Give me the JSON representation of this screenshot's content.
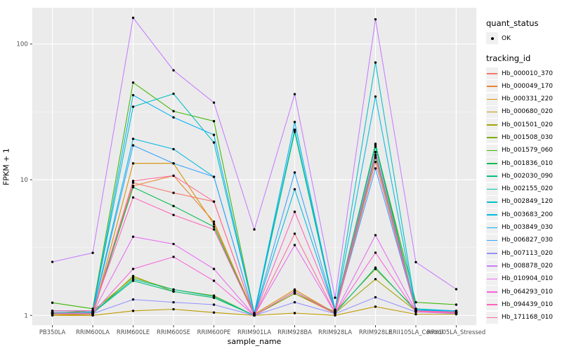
{
  "chart_data": {
    "type": "line",
    "title": "",
    "xlabel": "sample_name",
    "ylabel": "FPKM + 1",
    "y_scale": "log10",
    "ylim": [
      1,
      185
    ],
    "y_major_ticks": [
      "1",
      "10",
      "100"
    ],
    "y_major_values": [
      1,
      10,
      100
    ],
    "y_minor_gridline_values": [
      3.162,
      31.62
    ],
    "grid": true,
    "legend_position": "right",
    "panel_background": "#EBEBEB",
    "major_grid_color": "#FFFFFF",
    "minor_grid_color": "#F5F5F5",
    "tick_label_color": "#4D4D4D",
    "point_color": "#000000",
    "categories": [
      "PB350LA",
      "RRIM600LA",
      "RRIM600LE",
      "RRIM600SE",
      "RRIM600PE",
      "RRIM901LA",
      "RRIM928BA",
      "RRIM928LA",
      "RRIM928LE",
      "RRII105LA_Control",
      "RRII105LA_Stressed"
    ],
    "quant_status_legend": {
      "title": "quant_status",
      "items": [
        {
          "label": "OK",
          "marker": "point"
        }
      ]
    },
    "tracking_id_legend_title": "tracking_id",
    "series": [
      {
        "name": "Hb_000010_370",
        "color": "#F8766D",
        "values": [
          1.05,
          1.02,
          9.5,
          8.0,
          6.9,
          1.0,
          1.5,
          1.03,
          16.0,
          1.08,
          1.03
        ]
      },
      {
        "name": "Hb_000049_170",
        "color": "#EA8331",
        "values": [
          1.02,
          1.02,
          9.0,
          10.7,
          4.9,
          1.0,
          1.45,
          1.03,
          15.0,
          1.08,
          1.04
        ]
      },
      {
        "name": "Hb_000331_220",
        "color": "#D89000",
        "values": [
          1.02,
          1.0,
          13.2,
          13.2,
          4.7,
          1.02,
          1.55,
          1.04,
          14.5,
          1.1,
          1.06
        ]
      },
      {
        "name": "Hb_000680_020",
        "color": "#C09B00",
        "values": [
          1.0,
          1.0,
          1.08,
          1.11,
          1.05,
          1.0,
          1.04,
          1.0,
          1.16,
          1.02,
          1.02
        ]
      },
      {
        "name": "Hb_001501_020",
        "color": "#A3A500",
        "values": [
          1.03,
          1.03,
          1.95,
          1.5,
          1.35,
          1.0,
          1.5,
          1.04,
          1.85,
          1.08,
          1.05
        ]
      },
      {
        "name": "Hb_001508_030",
        "color": "#7CAE00",
        "values": [
          1.04,
          1.08,
          1.9,
          1.55,
          1.4,
          1.0,
          1.45,
          1.06,
          2.2,
          1.1,
          1.08
        ]
      },
      {
        "name": "Hb_001579_060",
        "color": "#39B600",
        "values": [
          1.24,
          1.12,
          52.0,
          32.0,
          27.0,
          1.04,
          23.0,
          1.1,
          18.0,
          1.25,
          1.2
        ]
      },
      {
        "name": "Hb_001836_010",
        "color": "#00BB4E",
        "values": [
          1.04,
          1.04,
          8.8,
          6.4,
          4.5,
          1.0,
          22.5,
          1.06,
          18.4,
          1.1,
          1.04
        ]
      },
      {
        "name": "Hb_002030_090",
        "color": "#00BF7D",
        "values": [
          1.04,
          1.04,
          1.8,
          1.5,
          1.35,
          1.0,
          1.5,
          1.04,
          2.25,
          1.08,
          1.06
        ]
      },
      {
        "name": "Hb_002155_020",
        "color": "#00C1A3",
        "values": [
          1.05,
          1.05,
          1.85,
          1.55,
          1.38,
          1.0,
          23.3,
          1.08,
          17.5,
          1.1,
          1.06
        ]
      },
      {
        "name": "Hb_002849_120",
        "color": "#00BFC4",
        "values": [
          1.08,
          1.08,
          34.5,
          43.0,
          18.8,
          1.03,
          23.3,
          1.1,
          73.0,
          1.12,
          1.08
        ]
      },
      {
        "name": "Hb_003683_200",
        "color": "#00BAE0",
        "values": [
          1.04,
          1.06,
          20.0,
          16.8,
          10.5,
          1.0,
          8.5,
          1.06,
          41.0,
          1.1,
          1.06
        ]
      },
      {
        "name": "Hb_003849_030",
        "color": "#00B0F6",
        "values": [
          1.08,
          1.08,
          42.0,
          28.8,
          21.4,
          1.03,
          26.6,
          1.08,
          15.3,
          1.1,
          1.08
        ]
      },
      {
        "name": "Hb_006827_030",
        "color": "#35A2FF",
        "values": [
          1.04,
          1.04,
          17.9,
          13.2,
          10.5,
          1.0,
          11.3,
          1.06,
          12.1,
          1.08,
          1.04
        ]
      },
      {
        "name": "Hb_007113_020",
        "color": "#9590FF",
        "values": [
          1.03,
          1.03,
          1.31,
          1.25,
          1.2,
          1.0,
          1.25,
          1.03,
          1.36,
          1.06,
          1.03
        ]
      },
      {
        "name": "Hb_008878_020",
        "color": "#C77CFF",
        "values": [
          2.48,
          2.89,
          156.0,
          64.0,
          37.0,
          4.3,
          42.7,
          1.35,
          152.0,
          2.47,
          1.56
        ]
      },
      {
        "name": "Hb_010904_010",
        "color": "#E76BF3",
        "values": [
          1.04,
          1.04,
          3.8,
          3.36,
          2.2,
          1.0,
          3.3,
          1.04,
          3.9,
          1.08,
          1.04
        ]
      },
      {
        "name": "Hb_064293_010",
        "color": "#FA62DB",
        "values": [
          1.04,
          1.04,
          2.2,
          2.7,
          1.8,
          1.0,
          1.5,
          1.04,
          2.9,
          1.06,
          1.04
        ]
      },
      {
        "name": "Hb_094439_010",
        "color": "#FF62BC",
        "values": [
          1.08,
          1.08,
          7.4,
          5.5,
          4.3,
          1.0,
          5.8,
          1.08,
          16.0,
          1.08,
          1.06
        ]
      },
      {
        "name": "Hb_171168_010",
        "color": "#FF6A98",
        "values": [
          1.04,
          1.04,
          9.8,
          10.7,
          6.9,
          1.0,
          4.0,
          1.04,
          13.5,
          1.08,
          1.04
        ]
      }
    ]
  }
}
